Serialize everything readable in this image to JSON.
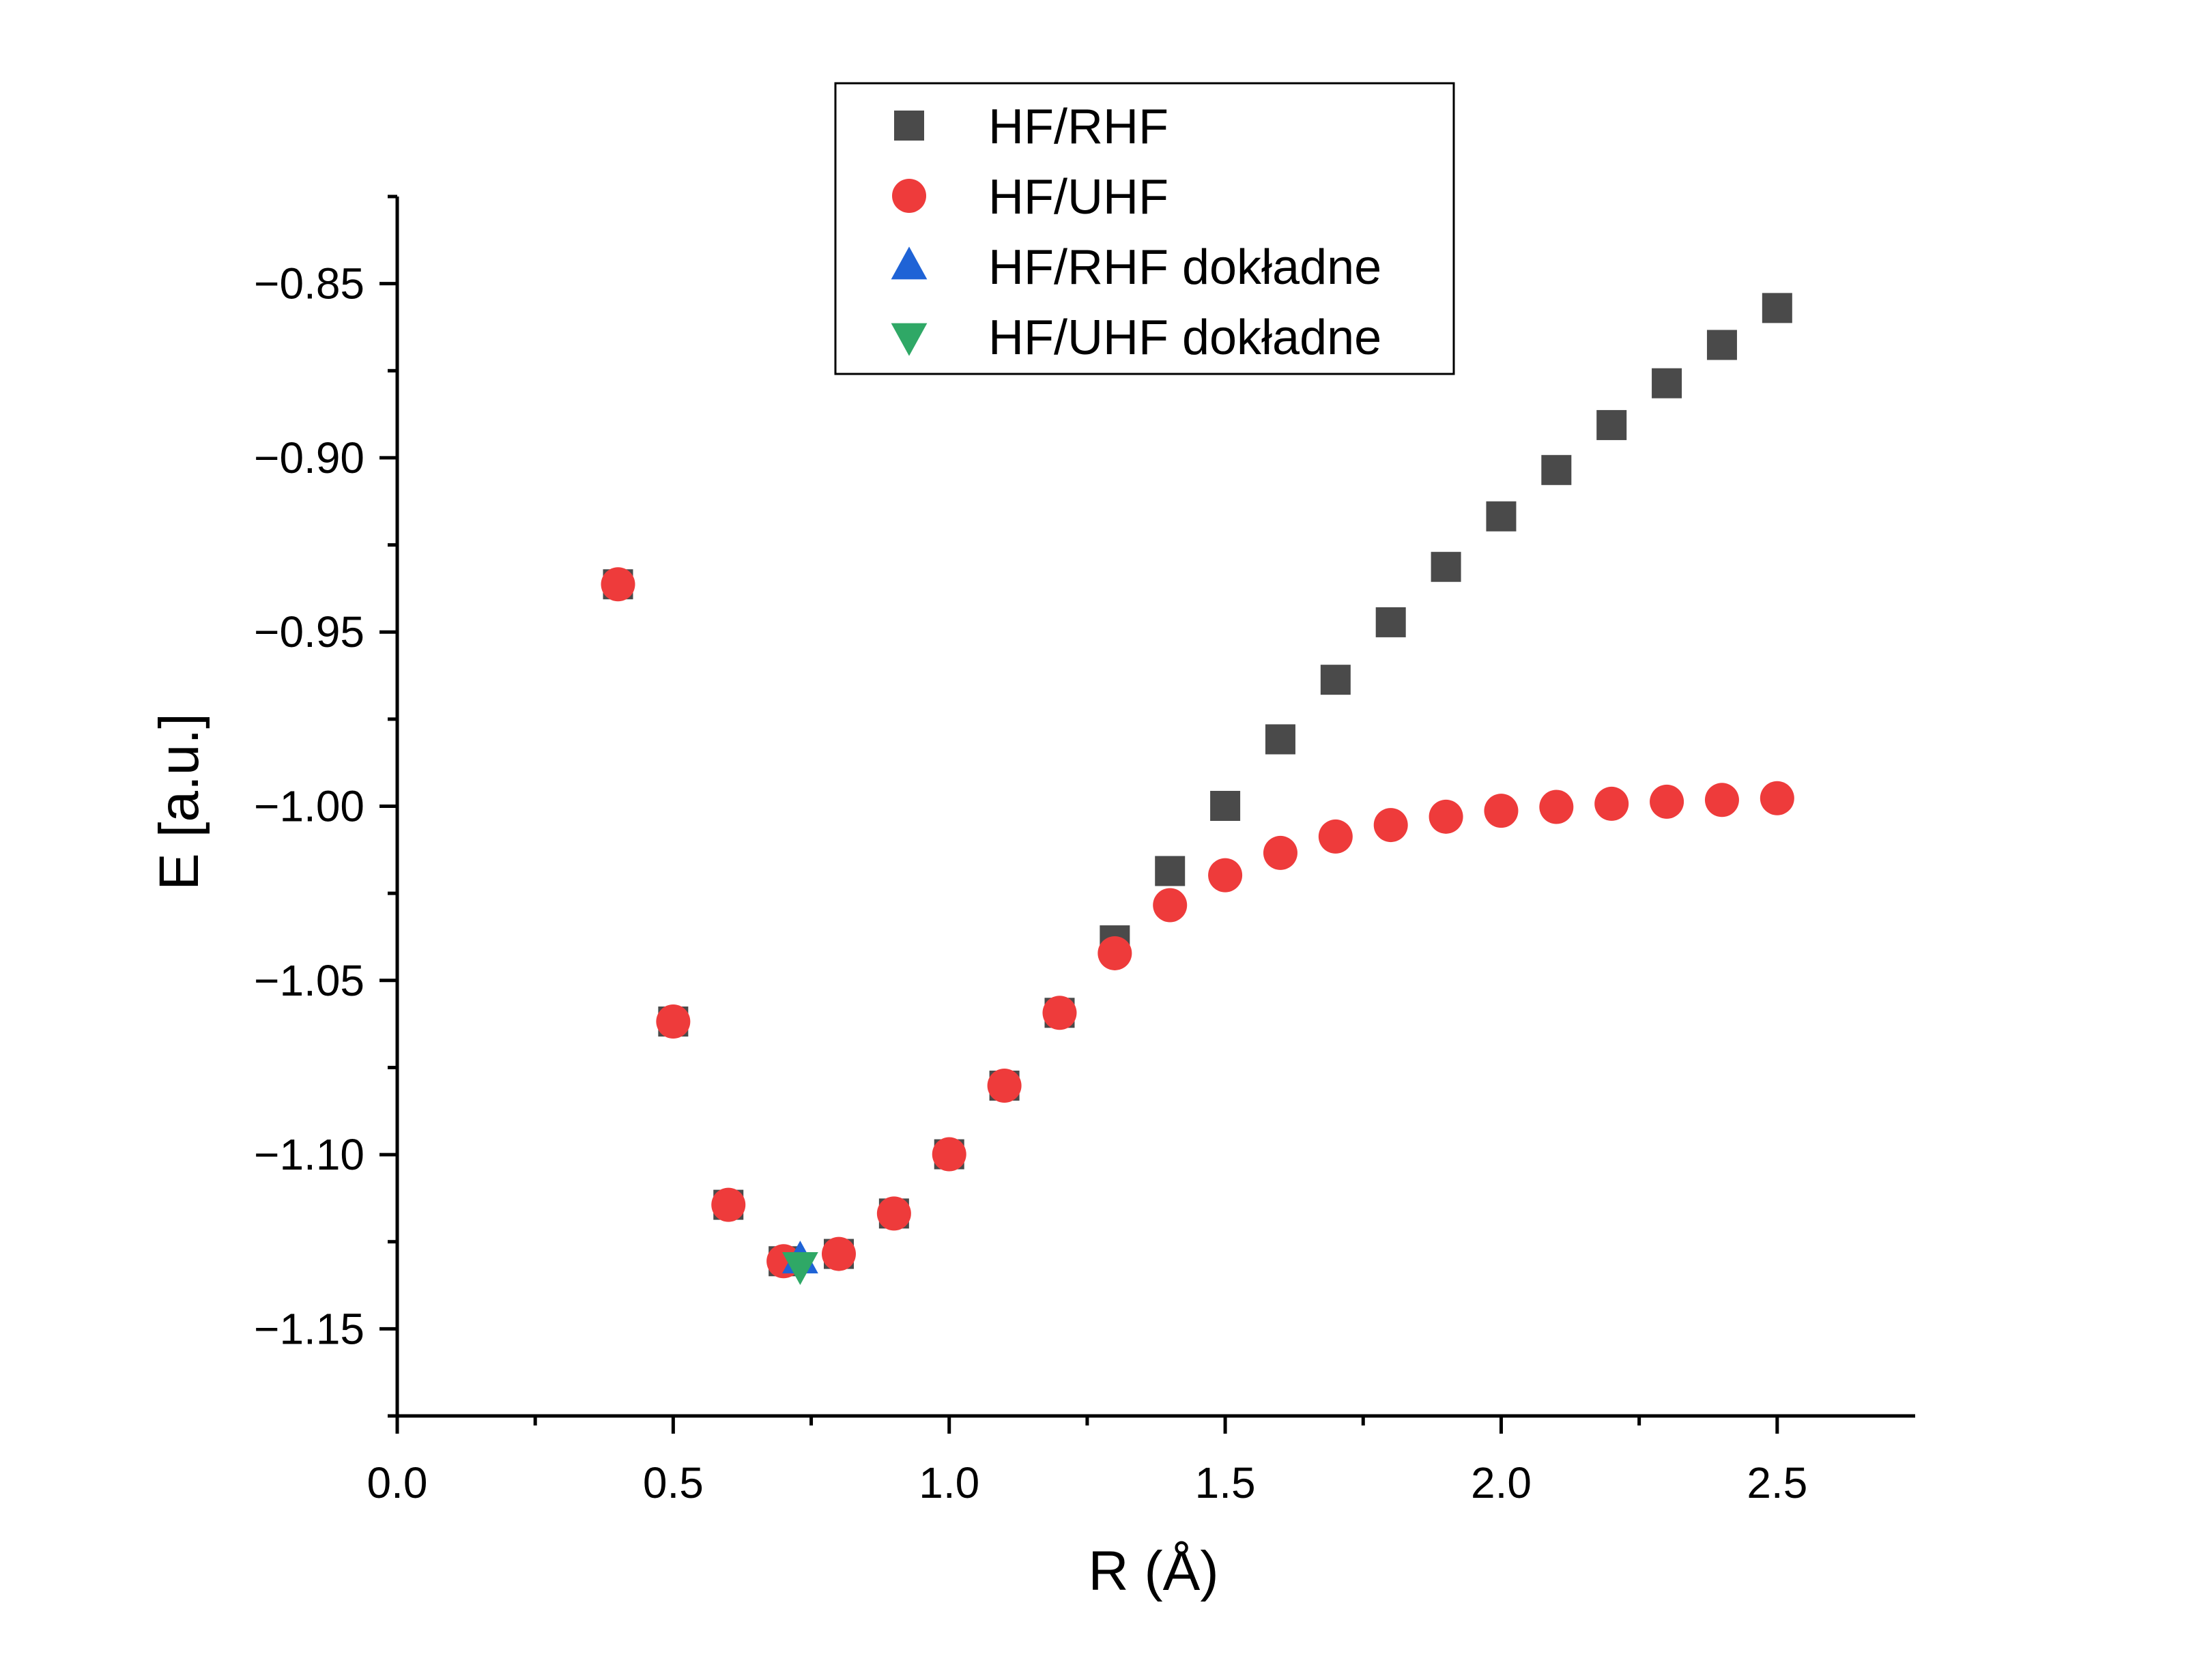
{
  "chart_data": {
    "type": "scatter",
    "title": "",
    "xlabel": "R (Å)",
    "ylabel": "E [a.u.]",
    "xlim": [
      0.0,
      2.75
    ],
    "ylim": [
      -1.175,
      -0.825
    ],
    "x_ticks": [
      0.0,
      0.5,
      1.0,
      1.5,
      2.0,
      2.5
    ],
    "x_tick_labels": [
      "0.0",
      "0.5",
      "1.0",
      "1.5",
      "2.0",
      "2.5"
    ],
    "y_ticks": [
      -0.85,
      -0.9,
      -0.95,
      -1.0,
      -1.05,
      -1.1,
      -1.15
    ],
    "y_tick_labels": [
      "−0.85",
      "−0.90",
      "−0.95",
      "−1.00",
      "−1.05",
      "−1.10",
      "−1.15"
    ],
    "grid": false,
    "legend_position": "top-center",
    "series": [
      {
        "name": "HF/RHF",
        "marker": "square",
        "color": "#4a4a4a",
        "x": [
          0.4,
          0.5,
          0.6,
          0.7,
          0.8,
          0.9,
          1.0,
          1.1,
          1.2,
          1.3,
          1.4,
          1.5,
          1.6,
          1.7,
          1.8,
          1.9,
          2.0,
          2.1,
          2.2,
          2.3,
          2.4,
          2.5
        ],
        "y": [
          -0.9363,
          -1.0618,
          -1.1144,
          -1.1306,
          -1.1285,
          -1.1169,
          -1.0999,
          -1.0802,
          -1.0593,
          -1.0385,
          -1.0186,
          -0.9999,
          -0.9808,
          -0.9637,
          -0.9472,
          -0.9313,
          -0.9168,
          -0.9035,
          -0.8906,
          -0.8786,
          -0.8676,
          -0.857
        ]
      },
      {
        "name": "HF/UHF",
        "marker": "circle",
        "color": "#ee3b3b",
        "x": [
          0.4,
          0.5,
          0.6,
          0.7,
          0.8,
          0.9,
          1.0,
          1.1,
          1.2,
          1.3,
          1.4,
          1.5,
          1.6,
          1.7,
          1.8,
          1.9,
          2.0,
          2.1,
          2.2,
          2.3,
          2.4,
          2.5
        ],
        "y": [
          -0.9363,
          -1.0618,
          -1.1144,
          -1.1306,
          -1.1285,
          -1.1169,
          -1.0999,
          -1.0802,
          -1.0593,
          -1.0422,
          -1.0284,
          -1.0198,
          -1.0134,
          -1.0087,
          -1.0054,
          -1.003,
          -1.0013,
          -1.0002,
          -0.9993,
          -0.9987,
          -0.9982,
          -0.9977
        ]
      },
      {
        "name": "HF/RHF dokładne",
        "marker": "triangle-up",
        "color": "#1f63d6",
        "x": [
          0.73
        ],
        "y": [
          -1.1303
        ]
      },
      {
        "name": "HF/UHF dokładne",
        "marker": "triangle-down",
        "color": "#2fa866",
        "x": [
          0.73
        ],
        "y": [
          -1.1318
        ]
      }
    ]
  }
}
